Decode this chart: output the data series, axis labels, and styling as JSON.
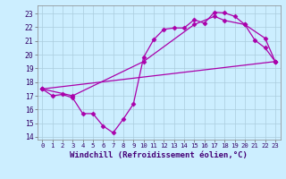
{
  "xlabel": "Windchill (Refroidissement éolien,°C)",
  "xlim_min": -0.5,
  "xlim_max": 23.5,
  "ylim_min": 13.8,
  "ylim_max": 23.6,
  "xticks": [
    0,
    1,
    2,
    3,
    4,
    5,
    6,
    7,
    8,
    9,
    10,
    11,
    12,
    13,
    14,
    15,
    16,
    17,
    18,
    19,
    20,
    21,
    22,
    23
  ],
  "yticks": [
    14,
    15,
    16,
    17,
    18,
    19,
    20,
    21,
    22,
    23
  ],
  "bg_color": "#cceeff",
  "grid_color": "#aaccdd",
  "line_color": "#aa00aa",
  "line1_x": [
    0,
    1,
    2,
    3,
    4,
    5,
    6,
    7,
    8,
    9,
    10,
    11,
    12,
    13,
    14,
    15,
    16,
    17,
    18,
    19,
    20,
    21,
    22,
    23
  ],
  "line1_y": [
    17.5,
    17.0,
    17.1,
    16.85,
    15.7,
    15.7,
    14.8,
    14.3,
    15.3,
    16.4,
    19.8,
    21.1,
    21.85,
    21.95,
    21.95,
    22.55,
    22.3,
    23.1,
    23.05,
    22.8,
    22.2,
    21.05,
    20.5,
    19.5
  ],
  "line2_x": [
    0,
    3,
    10,
    15,
    17,
    18,
    20,
    22,
    23
  ],
  "line2_y": [
    17.5,
    17.0,
    19.5,
    22.2,
    22.8,
    22.5,
    22.2,
    21.2,
    19.5
  ],
  "line3_x": [
    0,
    23
  ],
  "line3_y": [
    17.5,
    19.5
  ],
  "marker": "D",
  "marker_size": 2.5,
  "line_width": 0.9
}
